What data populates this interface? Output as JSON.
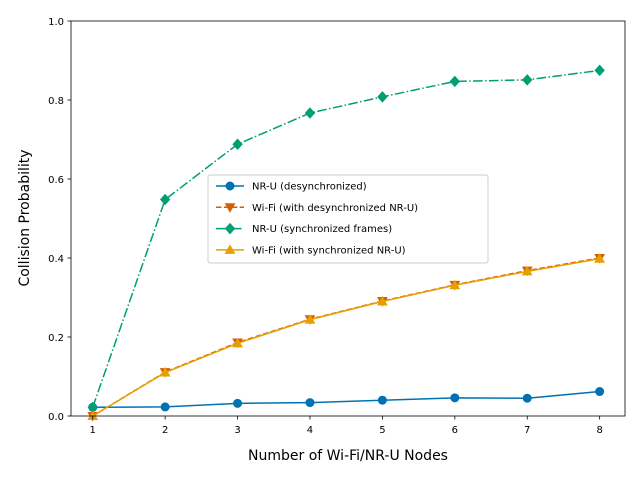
{
  "chart_data": {
    "type": "line",
    "title": "",
    "xlabel": "Number of Wi-Fi/NR-U Nodes",
    "ylabel": "Collision Probability",
    "x": [
      1,
      2,
      3,
      4,
      5,
      6,
      7,
      8
    ],
    "xlim": [
      0.7,
      8.35
    ],
    "ylim": [
      0,
      1.0
    ],
    "xticks": [
      1,
      2,
      3,
      4,
      5,
      6,
      7,
      8
    ],
    "yticks": [
      0.0,
      0.2,
      0.4,
      0.6,
      0.8,
      1.0
    ],
    "ytick_labels": [
      "0.0",
      "0.2",
      "0.4",
      "0.6",
      "0.8",
      "1.0"
    ],
    "grid": false,
    "legend_position": "center-right",
    "series": [
      {
        "name": "NR-U (desynchronized)",
        "values": [
          0.022,
          0.023,
          0.032,
          0.034,
          0.04,
          0.046,
          0.045,
          0.062
        ],
        "color": "#0072b2",
        "line_style": "solid",
        "marker": "circle"
      },
      {
        "name": "Wi-Fi (with desynchronized NR-U)",
        "values": [
          0.0,
          0.111,
          0.186,
          0.245,
          0.291,
          0.332,
          0.368,
          0.4
        ],
        "color": "#d55e00",
        "line_style": "dashed",
        "marker": "triangle-down"
      },
      {
        "name": "NR-U (synchronized frames)",
        "values": [
          0.022,
          0.548,
          0.688,
          0.767,
          0.808,
          0.847,
          0.851,
          0.875
        ],
        "color": "#009e73",
        "line_style": "dashdot",
        "marker": "diamond"
      },
      {
        "name": "Wi-Fi (with synchronized NR-U)",
        "values": [
          0.0,
          0.11,
          0.184,
          0.244,
          0.29,
          0.331,
          0.366,
          0.398
        ],
        "color": "#e69f00",
        "line_style": "solid",
        "marker": "triangle-up"
      }
    ]
  }
}
